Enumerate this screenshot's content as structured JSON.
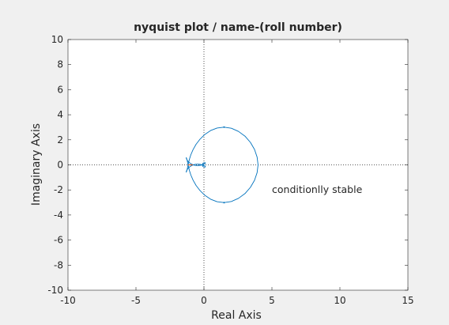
{
  "chart_data": {
    "type": "line",
    "title": "nyquist plot / name-(roll number)",
    "xlabel": "Real Axis",
    "ylabel": "Imaginary Axis",
    "xlim": [
      -10,
      15
    ],
    "ylim": [
      -10,
      10
    ],
    "xticks": [
      -10,
      -5,
      0,
      5,
      10,
      15
    ],
    "yticks": [
      -10,
      -8,
      -6,
      -4,
      -2,
      0,
      2,
      4,
      6,
      8,
      10
    ],
    "grid": false,
    "critical_point": {
      "x": -1,
      "y": 0
    },
    "annotation": {
      "text": "conditionlly stable",
      "x": 5,
      "y": -2
    },
    "colors": {
      "curve": "#0072bd",
      "critical": "#d95319",
      "axes": "#262626",
      "background": "#ffffff",
      "figure": "#f0f0f0"
    },
    "series": [
      {
        "x": [
          3.98,
          3.91,
          3.72,
          3.42,
          3.02,
          2.54,
          2.02,
          1.48,
          0.96,
          0.49,
          0.07,
          -0.29,
          -0.58,
          -0.8,
          -0.96,
          -1.07,
          -1.14,
          -1.2,
          -1.24,
          -1.28,
          -1.3,
          -1.3,
          -1.26,
          -1.17,
          -1.05,
          -0.91,
          -0.76,
          -0.6,
          -0.44,
          -0.29,
          -0.15,
          -0.04,
          0.05,
          0.1,
          0.11,
          0.09,
          0.05,
          -0.01,
          -0.06,
          -0.1,
          -0.1,
          -0.06,
          0.0
        ],
        "y": [
          0.0,
          0.62,
          1.23,
          1.79,
          2.29,
          2.67,
          2.92,
          3.01,
          2.94,
          2.74,
          2.43,
          2.05,
          1.64,
          1.22,
          0.82,
          0.45,
          0.11,
          -0.17,
          -0.39,
          -0.53,
          -0.58,
          -0.53,
          -0.42,
          -0.28,
          -0.16,
          -0.06,
          0.01,
          0.05,
          0.06,
          0.04,
          0.01,
          -0.04,
          -0.08,
          -0.12,
          -0.15,
          -0.17,
          -0.17,
          -0.16,
          -0.14,
          -0.1,
          -0.06,
          -0.03,
          0.0
        ]
      },
      {
        "x": [
          3.98,
          3.91,
          3.72,
          3.42,
          3.02,
          2.54,
          2.02,
          1.48,
          0.96,
          0.49,
          0.07,
          -0.29,
          -0.58,
          -0.8,
          -0.96,
          -1.07,
          -1.14,
          -1.2,
          -1.24,
          -1.28,
          -1.3,
          -1.3,
          -1.26,
          -1.17,
          -1.05,
          -0.91,
          -0.76,
          -0.6,
          -0.44,
          -0.29,
          -0.15,
          -0.04,
          0.05,
          0.1,
          0.11,
          0.09,
          0.05,
          -0.01,
          -0.06,
          -0.1,
          -0.1,
          -0.06,
          0.0
        ],
        "y": [
          0.0,
          -0.62,
          -1.23,
          -1.79,
          -2.29,
          -2.67,
          -2.92,
          -3.01,
          -2.94,
          -2.74,
          -2.43,
          -2.05,
          -1.64,
          -1.22,
          -0.82,
          -0.45,
          -0.11,
          0.17,
          0.39,
          0.53,
          0.58,
          0.53,
          0.42,
          0.28,
          0.16,
          0.06,
          -0.01,
          -0.05,
          -0.06,
          -0.04,
          -0.01,
          0.04,
          0.08,
          0.12,
          0.15,
          0.17,
          0.17,
          0.16,
          0.14,
          0.1,
          0.06,
          0.03,
          0.0
        ]
      }
    ]
  }
}
